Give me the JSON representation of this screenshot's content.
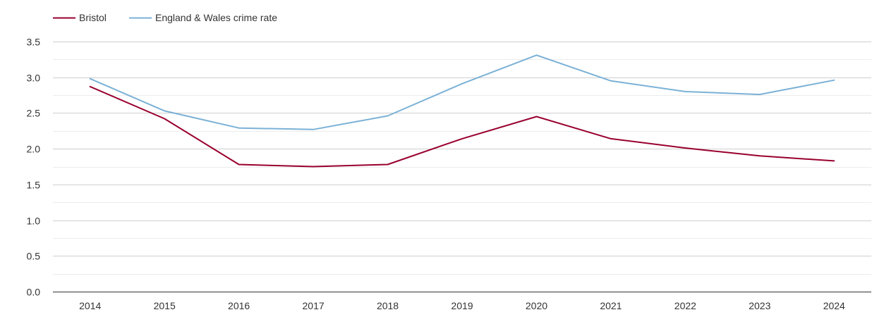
{
  "chart_data": {
    "type": "line",
    "title": "",
    "xlabel": "",
    "ylabel": "",
    "x": [
      "2014",
      "2015",
      "2016",
      "2017",
      "2018",
      "2019",
      "2020",
      "2021",
      "2022",
      "2023",
      "2024"
    ],
    "yticks": [
      "0.0",
      "0.5",
      "1.0",
      "1.5",
      "2.0",
      "2.5",
      "3.0",
      "3.5"
    ],
    "ylim": [
      0,
      3.5
    ],
    "grid": true,
    "minor_grid": true,
    "legend_position": "top-left",
    "series": [
      {
        "name": "Bristol",
        "color": "#99002e",
        "values": [
          2.87,
          2.42,
          1.78,
          1.75,
          1.78,
          2.14,
          2.45,
          2.14,
          2.01,
          1.9,
          1.83
        ]
      },
      {
        "name": "England & Wales crime rate",
        "color": "#7bb1d6",
        "values": [
          2.98,
          2.53,
          2.29,
          2.27,
          2.46,
          2.91,
          3.31,
          2.95,
          2.8,
          2.76,
          2.96
        ]
      }
    ]
  }
}
